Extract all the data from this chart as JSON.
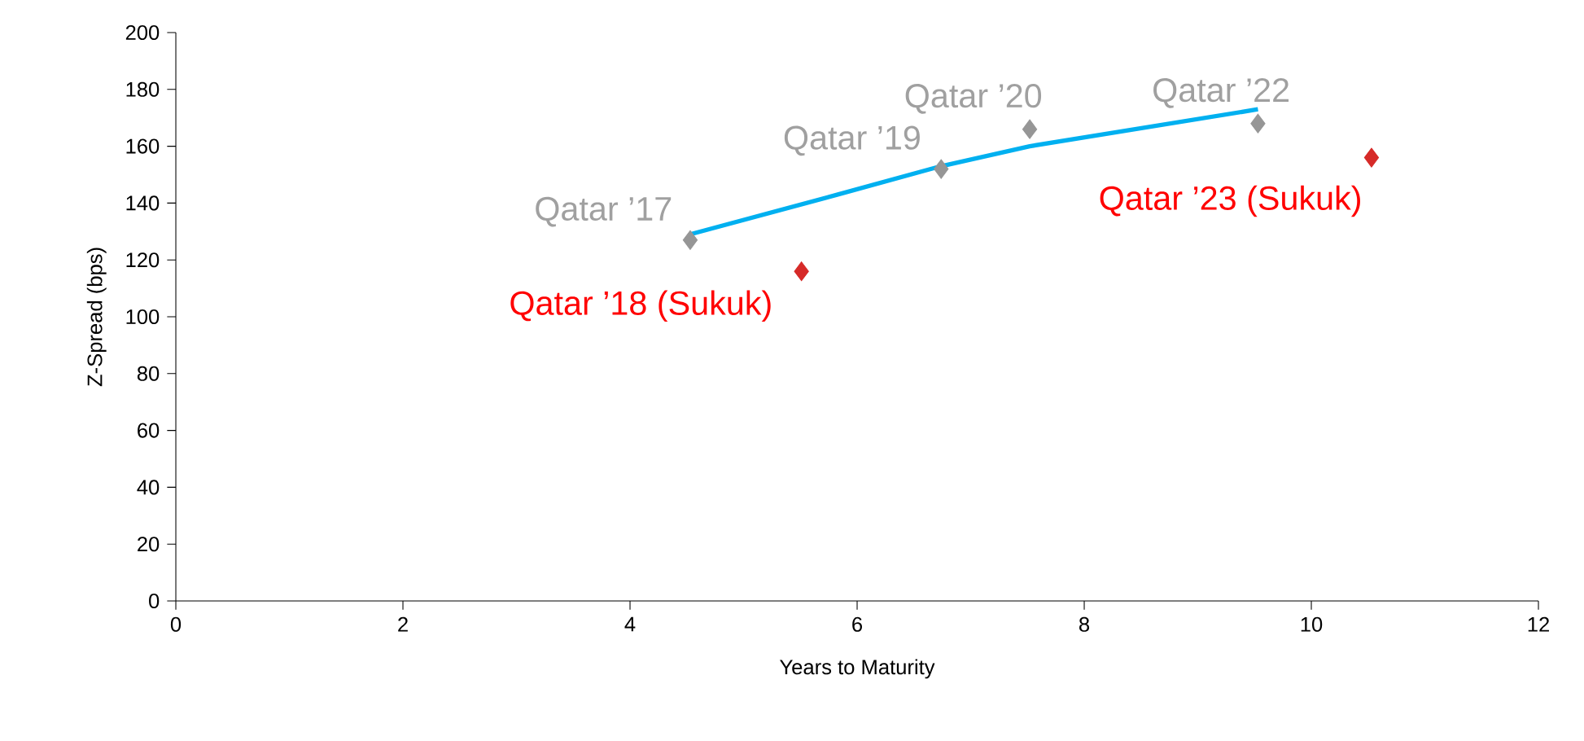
{
  "chart_data": {
    "type": "scatter",
    "xlabel": "Years to Maturity",
    "ylabel": "Z-Spread (bps)",
    "xlim": [
      0,
      12
    ],
    "xticks": [
      0,
      2,
      4,
      6,
      8,
      10,
      12
    ],
    "ylim": [
      0,
      200
    ],
    "yticks": [
      0,
      20,
      40,
      60,
      80,
      100,
      120,
      140,
      160,
      180,
      200
    ],
    "grid": false,
    "marker": "diamond",
    "series": [
      {
        "color": "#969696",
        "x": [
          4.53,
          6.74,
          7.52,
          9.53
        ],
        "values": [
          127,
          152,
          166,
          168
        ]
      },
      {
        "color": "#d62a28",
        "x": [
          5.51,
          10.53
        ],
        "values": [
          116,
          156
        ]
      },
      {
        "type": "line",
        "color": "#00b0f0",
        "marker": "none",
        "x": [
          4.53,
          5.83,
          6.74,
          7.52,
          9.53
        ],
        "values": [
          129,
          143,
          153,
          160,
          173
        ]
      }
    ],
    "annotations": [
      {
        "text": "Qatar ’17",
        "x": 4.53,
        "y": 127
      },
      {
        "text": "Qatar ’19",
        "x": 6.74,
        "y": 152
      },
      {
        "text": "Qatar ’20",
        "x": 7.52,
        "y": 166
      },
      {
        "text": "Qatar ’22",
        "x": 9.53,
        "y": 168
      },
      {
        "text": "Qatar ’18 (Sukuk)",
        "x": 5.51,
        "y": 116
      },
      {
        "text": "Qatar ’23 (Sukuk)",
        "x": 10.53,
        "y": 156
      }
    ]
  }
}
